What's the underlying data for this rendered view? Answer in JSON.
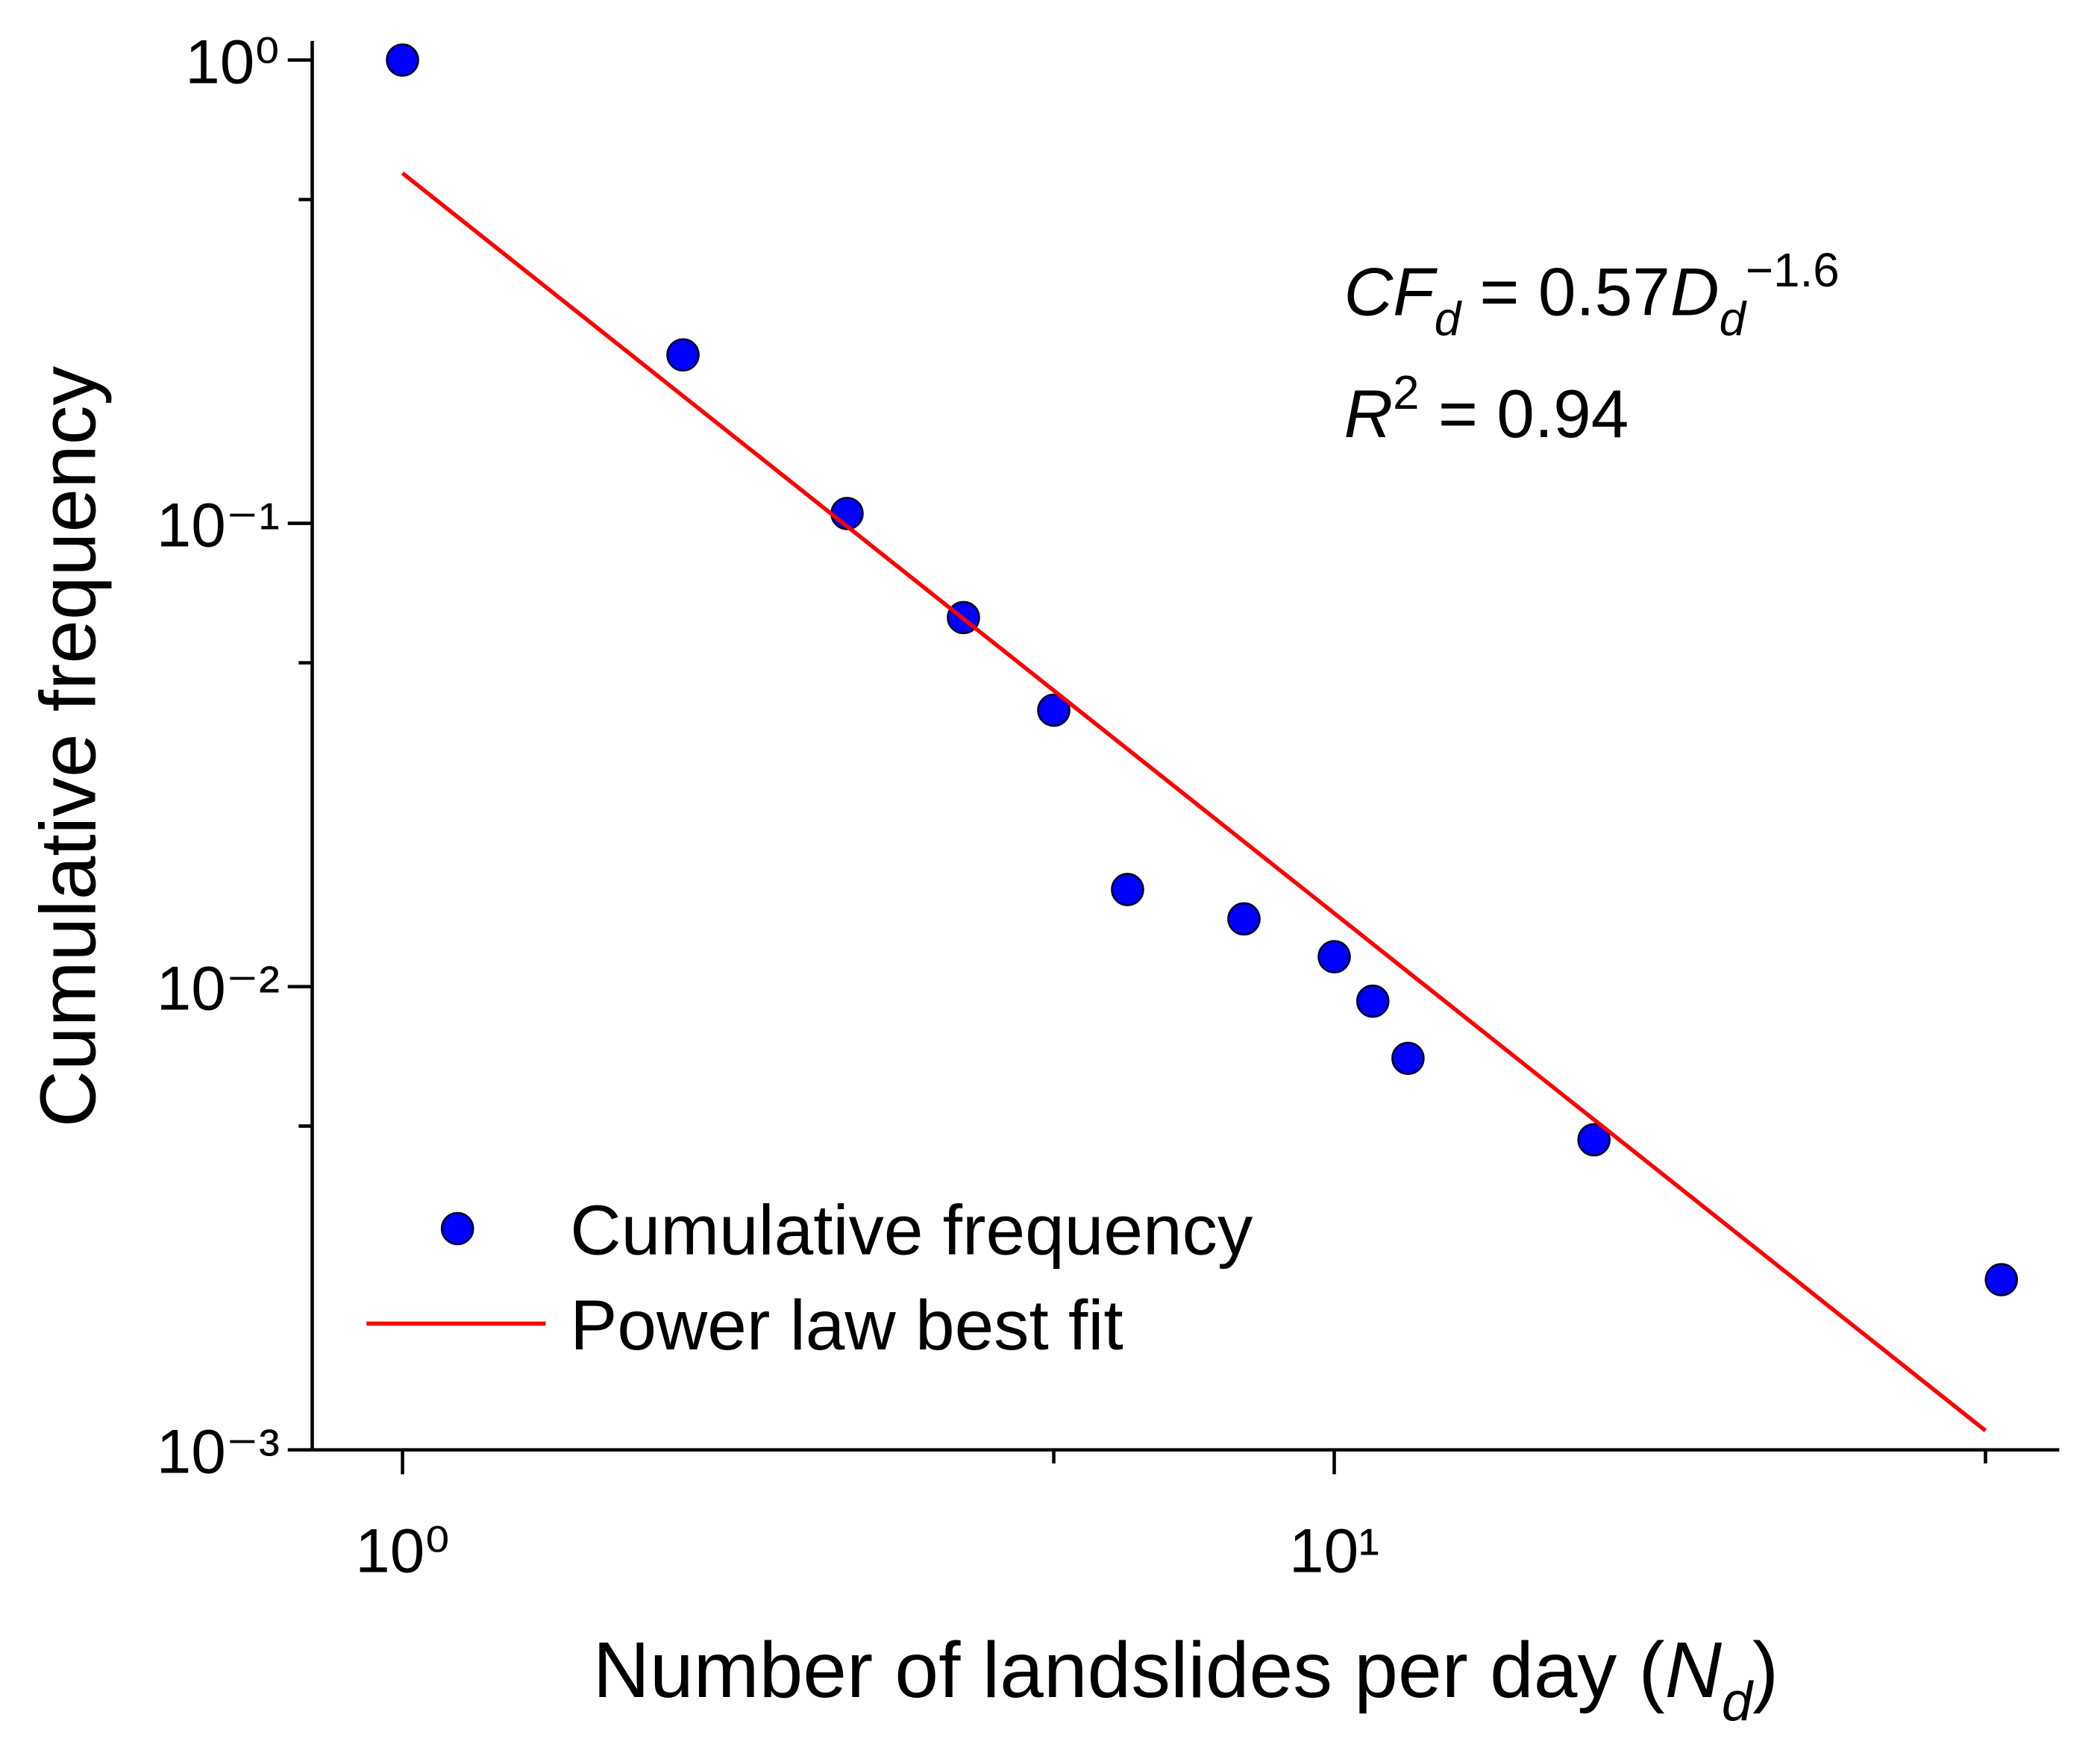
{
  "chart_data": {
    "type": "scatter",
    "xlabel": [
      {
        "text": "Number of landslides per day ("
      },
      {
        "text": "N",
        "style": "italic"
      },
      {
        "text": "d",
        "style": "sub"
      },
      {
        "text": ")"
      }
    ],
    "ylabel": "Cumulative frequency",
    "xscale": "log",
    "yscale": "log",
    "xlim": [
      0.8,
      60
    ],
    "ylim": [
      0.001,
      1.1
    ],
    "xticks": [
      {
        "value": 1,
        "label": "10⁰"
      },
      {
        "value": 10,
        "label": "10¹"
      }
    ],
    "xminorticks": [
      5,
      50
    ],
    "yticks": [
      {
        "value": 1,
        "label": "10⁰"
      },
      {
        "value": 0.1,
        "label": "10⁻¹"
      },
      {
        "value": 0.01,
        "label": "10⁻²"
      },
      {
        "value": 0.001,
        "label": "10⁻³"
      }
    ],
    "yminorticks": [
      0.5,
      0.05,
      0.005
    ],
    "grid": false,
    "legend": "lower left",
    "series": [
      {
        "name": "Cumulative frequency",
        "type": "scatter",
        "color": "#0000ff",
        "x": [
          1,
          2,
          3,
          4,
          5,
          6,
          8,
          10,
          11,
          12,
          19,
          52
        ],
        "values": [
          1,
          0.231,
          0.105,
          0.0626,
          0.0395,
          0.0162,
          0.014,
          0.0116,
          0.0093,
          0.007,
          0.00467,
          0.00233
        ]
      },
      {
        "name": "Power law best fit",
        "type": "line",
        "color": "#ff0000",
        "x": [
          1,
          50
        ],
        "values": [
          0.57,
          0.0011
        ]
      }
    ],
    "annotations": [
      [
        {
          "text": "CF",
          "style": "italic"
        },
        {
          "text": "d",
          "style": "sub"
        },
        {
          "text": " = 0.57"
        },
        {
          "text": "D",
          "style": "italic"
        },
        {
          "text": "d",
          "style": "sub"
        },
        {
          "text": "−1.6",
          "style": "sup"
        }
      ],
      [
        {
          "text": "R",
          "style": "italic"
        },
        {
          "text": "2",
          "style": "sup"
        },
        {
          "text": " = 0.94"
        }
      ]
    ]
  }
}
